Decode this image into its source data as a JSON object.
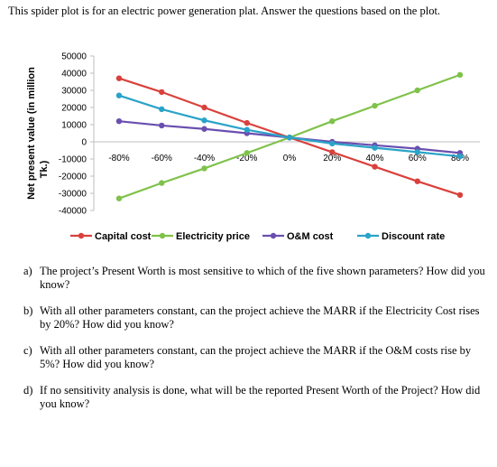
{
  "intro": "This spider plot is for an electric power generation plat. Answer the questions based on the plot.",
  "chart_data": {
    "type": "line",
    "title": "",
    "ylabel": "Net present value (in million Tk.)",
    "xlabel": "",
    "categories": [
      "-80%",
      "-60%",
      "-40%",
      "-20%",
      "0%",
      "20%",
      "40%",
      "60%",
      "80%"
    ],
    "yticks": [
      "50000",
      "40000",
      "30000",
      "20000",
      "10000",
      "0",
      "-10000",
      "-20000",
      "-30000",
      "-40000"
    ],
    "ylim": [
      -40000,
      50000
    ],
    "grid": false,
    "legend_position": "bottom",
    "series": [
      {
        "name": "Capital cost",
        "color": "#d9413c",
        "values": [
          37000,
          29000,
          20000,
          11000,
          2500,
          -6000,
          -14500,
          -23000,
          -31000
        ]
      },
      {
        "name": "Electricity price",
        "color": "#7fc24a",
        "values": [
          -33000,
          -24000,
          -15500,
          -6500,
          2500,
          12000,
          21000,
          30000,
          39000
        ]
      },
      {
        "name": "O&M cost",
        "color": "#6a4fb0",
        "values": [
          12000,
          9500,
          7500,
          5000,
          2500,
          0,
          -2000,
          -4000,
          -6500
        ]
      },
      {
        "name": "Discount rate",
        "color": "#2aa3c8",
        "values": [
          27000,
          19000,
          12500,
          7000,
          2500,
          -1000,
          -3500,
          -6000,
          -8500
        ]
      }
    ]
  },
  "questions": [
    {
      "letter": "a)",
      "text": "The project’s Present Worth is most sensitive to which of the five shown parameters? How did you know?"
    },
    {
      "letter": "b)",
      "text": "With all other parameters constant, can the project achieve the MARR if the Electricity Cost rises by 20%? How did you know?"
    },
    {
      "letter": "c)",
      "text": "With all other parameters constant, can the project achieve the MARR if the O&M costs rise by 5%? How did you know?"
    },
    {
      "letter": "d)",
      "text": "If no sensitivity analysis is done, what will be the reported Present Worth of the Project? How did you know?"
    }
  ]
}
